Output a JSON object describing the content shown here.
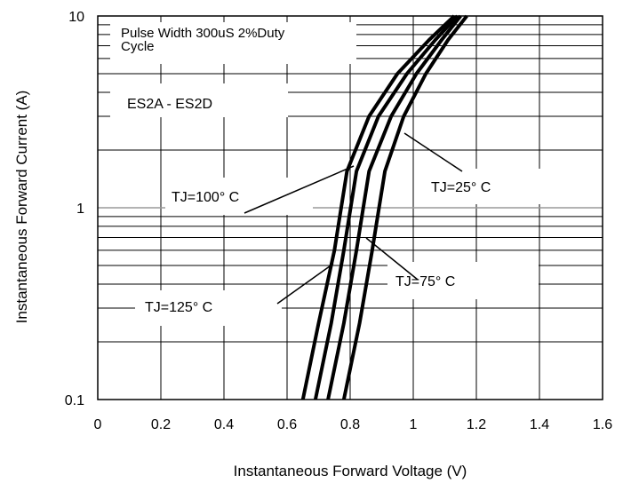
{
  "chart_data": {
    "type": "line",
    "title": "",
    "xlabel": "Instantaneous Forward Voltage (V)",
    "ylabel": "Instantaneous Forward Current (A)",
    "xlim": [
      0,
      1.6
    ],
    "ylim": [
      0.1,
      10
    ],
    "yscale": "log",
    "grid": true,
    "x_ticks": [
      "0",
      "0.2",
      "0.4",
      "0.6",
      "0.8",
      "1",
      "1.2",
      "1.4",
      "1.6"
    ],
    "y_ticks": [
      "0.1",
      "1",
      "10"
    ],
    "notes": [
      "Pulse Width 300uS 2%Duty",
      "Cycle",
      "ES2A - ES2D"
    ],
    "series": [
      {
        "name": "TJ=125° C",
        "x": [
          0.65,
          0.7,
          0.75,
          0.79,
          0.86,
          0.95,
          1.05,
          1.13
        ],
        "y": [
          0.1,
          0.25,
          0.6,
          1.55,
          3.0,
          5.0,
          7.5,
          10
        ]
      },
      {
        "name": "TJ=100° C",
        "x": [
          0.69,
          0.74,
          0.78,
          0.82,
          0.89,
          0.98,
          1.07,
          1.14
        ],
        "y": [
          0.1,
          0.25,
          0.6,
          1.55,
          3.0,
          5.0,
          7.5,
          10
        ]
      },
      {
        "name": "TJ=75° C",
        "x": [
          0.73,
          0.78,
          0.82,
          0.86,
          0.93,
          1.01,
          1.09,
          1.15
        ],
        "y": [
          0.1,
          0.25,
          0.6,
          1.55,
          3.0,
          5.0,
          7.5,
          10
        ]
      },
      {
        "name": "TJ=25° C",
        "x": [
          0.78,
          0.83,
          0.87,
          0.91,
          0.97,
          1.04,
          1.11,
          1.17
        ],
        "y": [
          0.1,
          0.25,
          0.6,
          1.55,
          3.0,
          5.0,
          7.5,
          10
        ]
      }
    ]
  }
}
